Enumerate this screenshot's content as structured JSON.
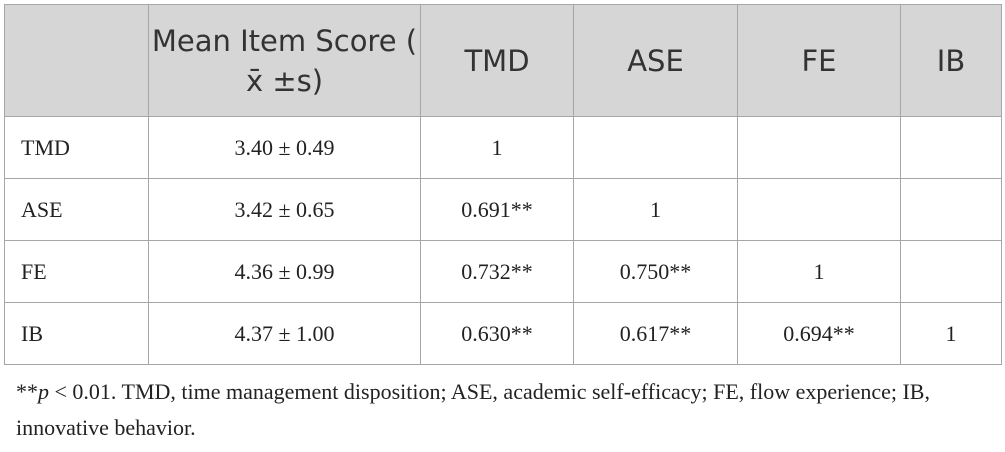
{
  "table": {
    "header": [
      "Mean Item Score ( x̄ ±s)",
      "TMD",
      "ASE",
      "FE",
      "IB"
    ],
    "rows": [
      [
        "TMD",
        "3.40 ± 0.49",
        "1"
      ],
      [
        "ASE",
        "3.42 ± 0.65",
        "0.691**",
        "1"
      ],
      [
        "FE",
        "4.36 ± 0.99",
        "0.732**",
        "0.750**",
        "1"
      ],
      [
        "IB",
        "4.37 ± 1.00",
        "0.630**",
        "0.617**",
        "0.694**",
        "1"
      ]
    ]
  },
  "footnote": {
    "marker": "**",
    "p": "p",
    "text": " < 0.01. TMD, time management disposition; ASE, academic self-efficacy; FE, flow experience; IB, innovative behavior."
  }
}
